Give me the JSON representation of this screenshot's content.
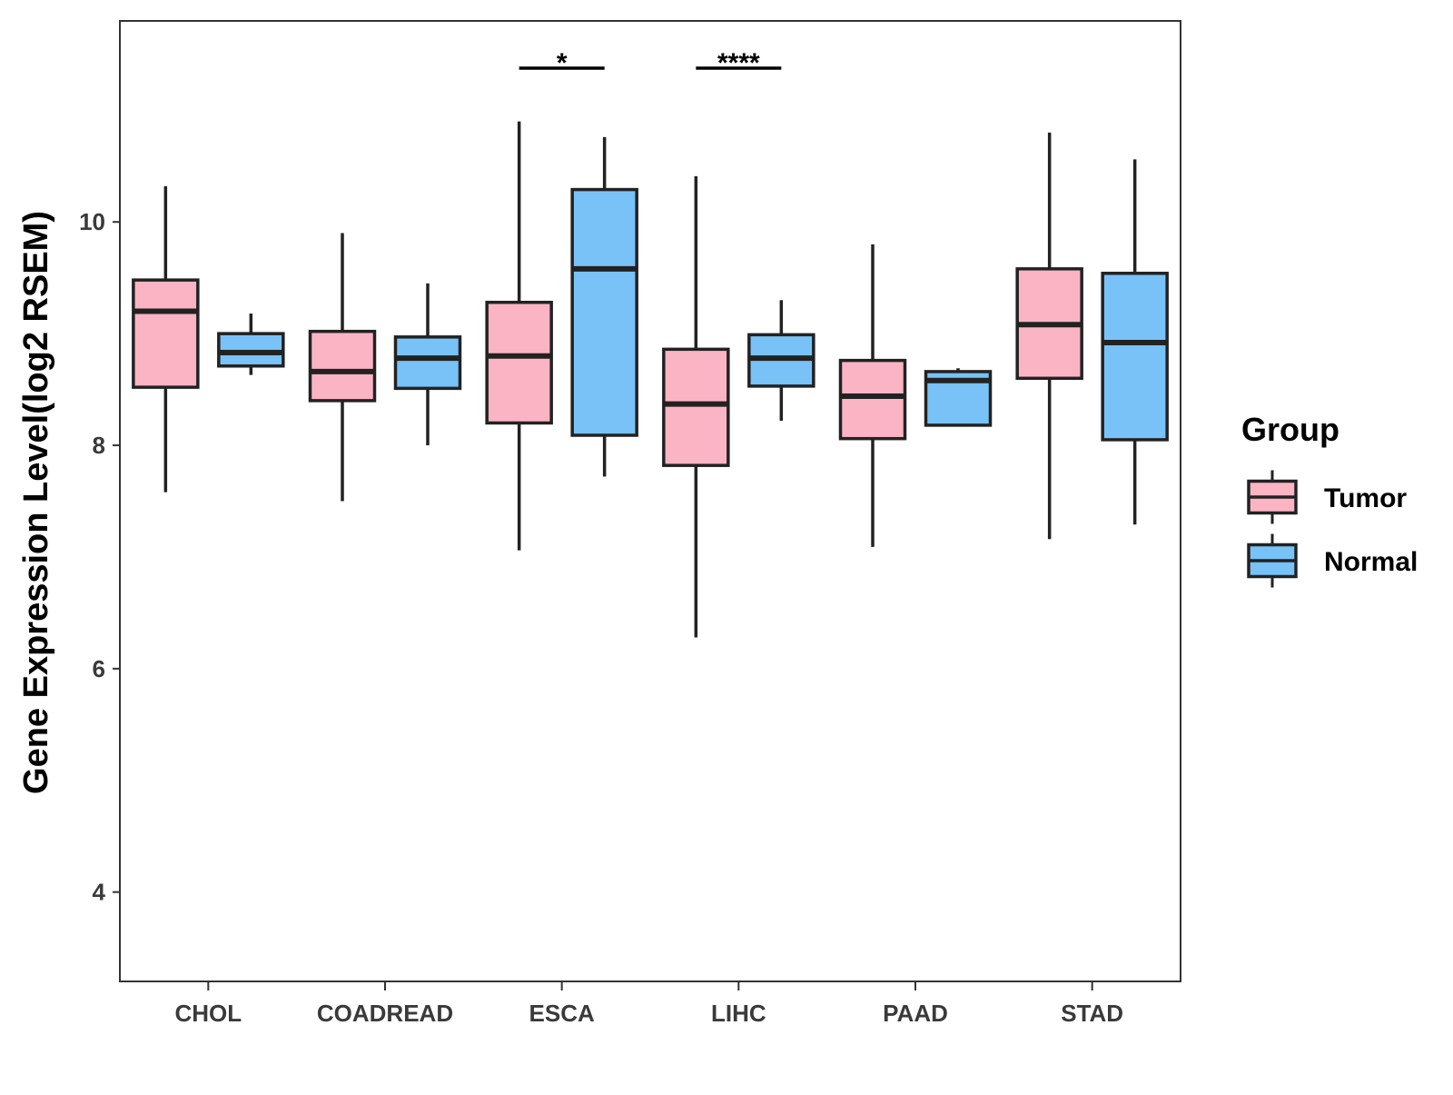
{
  "chart_data": {
    "type": "boxplot",
    "title": "",
    "xlabel": "",
    "ylabel": "Gene Expression Level(log2 RSEM)",
    "ylim": [
      3.2,
      11.8
    ],
    "yticks": [
      4,
      6,
      8,
      10
    ],
    "categories": [
      "CHOL",
      "COADREAD",
      "ESCA",
      "LIHC",
      "PAAD",
      "STAD"
    ],
    "legend": {
      "title": "Group",
      "position": "right"
    },
    "series": [
      {
        "name": "Tumor",
        "color": "#FBB4C4",
        "boxes": [
          {
            "min": 7.58,
            "q1": 8.52,
            "median": 9.2,
            "q3": 9.48,
            "max": 10.32
          },
          {
            "min": 7.5,
            "q1": 8.4,
            "median": 8.66,
            "q3": 9.02,
            "max": 9.9
          },
          {
            "min": 7.06,
            "q1": 8.2,
            "median": 8.8,
            "q3": 9.28,
            "max": 10.9
          },
          {
            "min": 6.28,
            "q1": 7.82,
            "median": 8.37,
            "q3": 8.86,
            "max": 10.41
          },
          {
            "min": 7.09,
            "q1": 8.06,
            "median": 8.44,
            "q3": 8.76,
            "max": 9.8
          },
          {
            "min": 7.16,
            "q1": 8.6,
            "median": 9.08,
            "q3": 9.58,
            "max": 10.8
          }
        ]
      },
      {
        "name": "Normal",
        "color": "#78C2F8",
        "boxes": [
          {
            "min": 8.63,
            "q1": 8.71,
            "median": 8.83,
            "q3": 9.0,
            "max": 9.18
          },
          {
            "min": 8.0,
            "q1": 8.51,
            "median": 8.78,
            "q3": 8.97,
            "max": 9.45
          },
          {
            "min": 7.72,
            "q1": 8.09,
            "median": 9.58,
            "q3": 10.29,
            "max": 10.76
          },
          {
            "min": 8.22,
            "q1": 8.53,
            "median": 8.78,
            "q3": 8.99,
            "max": 9.3
          },
          {
            "min": 8.18,
            "q1": 8.18,
            "median": 8.58,
            "q3": 8.66,
            "max": 8.69
          },
          {
            "min": 7.29,
            "q1": 8.05,
            "median": 8.92,
            "q3": 9.54,
            "max": 10.56
          }
        ]
      }
    ],
    "significance": [
      {
        "category": "ESCA",
        "label": "*"
      },
      {
        "category": "LIHC",
        "label": "****"
      }
    ]
  }
}
